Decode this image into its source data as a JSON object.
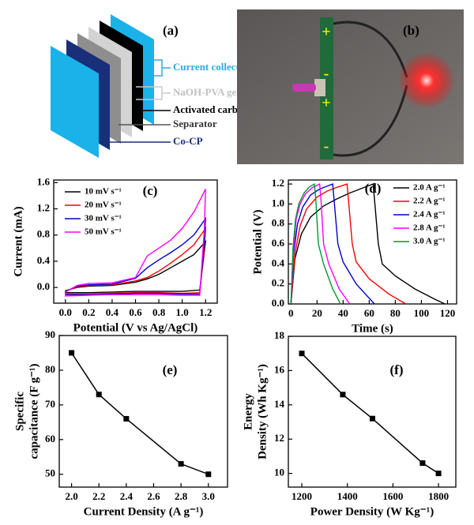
{
  "panel_a": {
    "tag": "(a)",
    "labels": [
      "Current collector",
      "NaOH-PVA gel",
      "Activated carbon",
      "Separator",
      "Co-CP"
    ]
  },
  "panel_b": {
    "tag": "(b)",
    "symbols": [
      "+",
      "-",
      "+",
      "-"
    ]
  },
  "chart_data": [
    {
      "type": "line",
      "panel_label": "(c)",
      "x_label": "Potential (V vs Ag/AgCl)",
      "y_label": [
        "Current (mA)"
      ],
      "xlim": [
        -0.1,
        1.3
      ],
      "ylim": [
        -0.24,
        1.64
      ],
      "xticks": [
        {
          "value": 0,
          "label": "0.0"
        },
        0.2,
        0.4,
        0.6,
        0.8,
        {
          "value": 1,
          "label": "1.0"
        },
        1.2
      ],
      "yticks": [
        {
          "value": 0,
          "label": "0.0"
        },
        0.4,
        0.8,
        1.2,
        1.6
      ],
      "legend": "upper left",
      "markers": false,
      "series": [
        {
          "name": "10 mV s⁻¹",
          "color": "#000000",
          "x": [
            0,
            0.1,
            0.2,
            0.4,
            0.6,
            0.7,
            0.8,
            0.9,
            1.0,
            1.1,
            1.2,
            1.19,
            1.15,
            1.0,
            0.8,
            0.6,
            0.4,
            0.2,
            0.0,
            0
          ],
          "values": [
            -0.05,
            0.0,
            0.02,
            0.03,
            0.08,
            0.13,
            0.2,
            0.3,
            0.4,
            0.5,
            0.7,
            0.55,
            -0.04,
            -0.06,
            -0.06,
            -0.06,
            -0.07,
            -0.08,
            -0.08,
            -0.05
          ]
        },
        {
          "name": "20 mV s⁻¹",
          "color": "#ff0000",
          "x": [
            0,
            0.1,
            0.2,
            0.4,
            0.6,
            0.7,
            0.8,
            0.9,
            1.0,
            1.1,
            1.2,
            1.19,
            1.15,
            1.0,
            0.8,
            0.6,
            0.4,
            0.2,
            0.0,
            0
          ],
          "values": [
            -0.06,
            0.01,
            0.03,
            0.04,
            0.1,
            0.15,
            0.25,
            0.37,
            0.5,
            0.65,
            0.9,
            0.6,
            -0.08,
            -0.09,
            -0.08,
            -0.08,
            -0.09,
            -0.1,
            -0.1,
            -0.06
          ]
        },
        {
          "name": "30 mV s⁻¹",
          "color": "#0000cc",
          "x": [
            0,
            0.1,
            0.2,
            0.4,
            0.6,
            0.7,
            0.8,
            0.9,
            1.0,
            1.1,
            1.2,
            1.19,
            1.15,
            1.0,
            0.8,
            0.6,
            0.4,
            0.2,
            0.0,
            0
          ],
          "values": [
            -0.06,
            0.02,
            0.04,
            0.05,
            0.14,
            0.3,
            0.42,
            0.53,
            0.65,
            0.8,
            1.05,
            0.7,
            -0.1,
            -0.1,
            -0.09,
            -0.09,
            -0.1,
            -0.11,
            -0.11,
            -0.06
          ]
        },
        {
          "name": "50 mV s⁻¹",
          "color": "#ff00ff",
          "x": [
            0,
            0.1,
            0.2,
            0.4,
            0.6,
            0.7,
            0.8,
            0.9,
            1.0,
            1.1,
            1.2,
            1.19,
            1.15,
            1.0,
            0.8,
            0.6,
            0.4,
            0.2,
            0.0,
            0
          ],
          "values": [
            -0.07,
            0.03,
            0.06,
            0.07,
            0.15,
            0.48,
            0.6,
            0.72,
            0.9,
            1.15,
            1.5,
            0.9,
            -0.12,
            -0.12,
            -0.11,
            -0.11,
            -0.11,
            -0.12,
            -0.13,
            -0.07
          ]
        }
      ]
    },
    {
      "type": "line",
      "panel_label": "(d)",
      "x_label": "Time (s)",
      "y_label": [
        "Potential (V)"
      ],
      "xlim": [
        -2,
        127
      ],
      "ylim": [
        0,
        1.24
      ],
      "xticks": [
        0,
        20,
        40,
        60,
        80,
        100,
        120
      ],
      "yticks": [
        {
          "value": 0,
          "label": "0.0"
        },
        0.2,
        0.4,
        0.6,
        0.8,
        {
          "value": 1,
          "label": "1.0"
        },
        1.2
      ],
      "legend": "upper right",
      "markers": false,
      "series": [
        {
          "name": "2.0 A g⁻¹",
          "color": "#000000",
          "x": [
            0,
            3,
            8,
            15,
            25,
            35,
            45,
            55,
            63,
            64,
            67,
            70,
            80,
            95,
            110,
            118
          ],
          "values": [
            0,
            0.45,
            0.7,
            0.87,
            0.98,
            1.05,
            1.11,
            1.16,
            1.2,
            1.05,
            0.6,
            0.4,
            0.28,
            0.15,
            0.05,
            0
          ]
        },
        {
          "name": "2.2 A g⁻¹",
          "color": "#ff0000",
          "x": [
            0,
            3,
            7,
            12,
            20,
            28,
            36,
            43,
            44,
            47,
            50,
            60,
            75,
            88
          ],
          "values": [
            0,
            0.5,
            0.78,
            0.95,
            1.07,
            1.13,
            1.17,
            1.2,
            1.05,
            0.6,
            0.42,
            0.25,
            0.1,
            0
          ]
        },
        {
          "name": "2.4 A g⁻¹",
          "color": "#0000cc",
          "x": [
            0,
            2,
            5,
            9,
            15,
            22,
            28,
            32,
            33,
            36,
            40,
            50,
            64
          ],
          "values": [
            0,
            0.5,
            0.8,
            0.97,
            1.09,
            1.15,
            1.18,
            1.2,
            1.05,
            0.6,
            0.42,
            0.2,
            0
          ]
        },
        {
          "name": "2.8 A g⁻¹",
          "color": "#ff00ff",
          "x": [
            0,
            2,
            4,
            7,
            11,
            16,
            22,
            23,
            25,
            29,
            37,
            45
          ],
          "values": [
            0,
            0.55,
            0.85,
            1.0,
            1.1,
            1.16,
            1.2,
            1.05,
            0.6,
            0.4,
            0.15,
            0
          ]
        },
        {
          "name": "3.0 A g⁻¹",
          "color": "#009933",
          "x": [
            0,
            1.5,
            3.5,
            6,
            10,
            14,
            18,
            19,
            21,
            25,
            32,
            38
          ],
          "values": [
            0,
            0.55,
            0.85,
            1.0,
            1.11,
            1.17,
            1.2,
            1.05,
            0.6,
            0.4,
            0.15,
            0
          ]
        }
      ]
    },
    {
      "type": "line",
      "panel_label": "(e)",
      "x_label": "Current Density (A g⁻¹)",
      "y_label": [
        "Specific",
        "capacitance (F g⁻¹)"
      ],
      "xlim": [
        1.91,
        3.14
      ],
      "ylim": [
        46.3,
        90
      ],
      "xticks": [
        {
          "value": 2,
          "label": "2.0"
        },
        2.2,
        2.4,
        2.6,
        2.8,
        {
          "value": 3,
          "label": "3.0"
        }
      ],
      "yticks": [
        50,
        60,
        70,
        80,
        90
      ],
      "markers": true,
      "series": [
        {
          "color": "#000000",
          "x": [
            2.0,
            2.2,
            2.4,
            2.8,
            3.0
          ],
          "values": [
            85,
            73,
            66,
            53,
            50
          ]
        }
      ]
    },
    {
      "type": "line",
      "panel_label": "(f)",
      "x_label": "Power Density (W Kg⁻¹)",
      "y_label": [
        "Energy",
        "Density (Wh Kg⁻¹)"
      ],
      "xlim": [
        1141,
        1876
      ],
      "ylim": [
        9.2,
        18
      ],
      "xticks": [
        1200,
        1400,
        1600,
        1800
      ],
      "yticks": [
        10,
        12,
        14,
        16,
        18
      ],
      "markers": true,
      "series": [
        {
          "color": "#000000",
          "x": [
            1200,
            1380,
            1510,
            1730,
            1800
          ],
          "values": [
            17,
            14.6,
            13.2,
            10.6,
            10
          ]
        }
      ]
    }
  ]
}
